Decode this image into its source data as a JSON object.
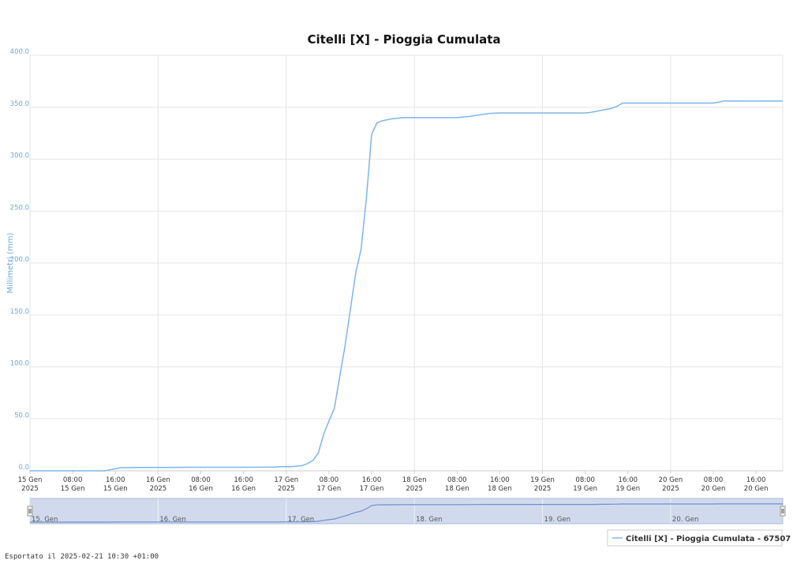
{
  "chart_data": {
    "type": "line",
    "title": "Citelli [X] - Pioggia Cumulata",
    "ylabel": "Millimetri (mm)",
    "xlabel": "",
    "ylim": [
      0,
      400
    ],
    "xlim": [
      0,
      141
    ],
    "y_ticks": [
      "0.0",
      "50.0",
      "100.0",
      "150.0",
      "200.0",
      "250.0",
      "300.0",
      "350.0",
      "400.0"
    ],
    "x_ticks": [
      {
        "x": 0,
        "line1": "15 Gen",
        "line2": "2025"
      },
      {
        "x": 8,
        "line1": "08:00",
        "line2": "15 Gen"
      },
      {
        "x": 16,
        "line1": "16:00",
        "line2": "15 Gen"
      },
      {
        "x": 24,
        "line1": "16 Gen",
        "line2": "2025"
      },
      {
        "x": 32,
        "line1": "08:00",
        "line2": "16 Gen"
      },
      {
        "x": 40,
        "line1": "16:00",
        "line2": "16 Gen"
      },
      {
        "x": 48,
        "line1": "17 Gen",
        "line2": "2025"
      },
      {
        "x": 56,
        "line1": "08:00",
        "line2": "17 Gen"
      },
      {
        "x": 64,
        "line1": "16:00",
        "line2": "17 Gen"
      },
      {
        "x": 72,
        "line1": "18 Gen",
        "line2": "2025"
      },
      {
        "x": 80,
        "line1": "08:00",
        "line2": "18 Gen"
      },
      {
        "x": 88,
        "line1": "16:00",
        "line2": "18 Gen"
      },
      {
        "x": 96,
        "line1": "19 Gen",
        "line2": "2025"
      },
      {
        "x": 104,
        "line1": "08:00",
        "line2": "19 Gen"
      },
      {
        "x": 112,
        "line1": "16:00",
        "line2": "19 Gen"
      },
      {
        "x": 120,
        "line1": "20 Gen",
        "line2": "2025"
      },
      {
        "x": 128,
        "line1": "08:00",
        "line2": "20 Gen"
      },
      {
        "x": 136,
        "line1": "16:00",
        "line2": "20 Gen"
      }
    ],
    "navigator_ticks": [
      {
        "x": 0,
        "label": "15. Gen"
      },
      {
        "x": 24,
        "label": "16. Gen"
      },
      {
        "x": 48,
        "label": "17. Gen"
      },
      {
        "x": 72,
        "label": "18. Gen"
      },
      {
        "x": 96,
        "label": "19. Gen"
      },
      {
        "x": 120,
        "label": "20. Gen"
      }
    ],
    "grid": true,
    "legend_position": "bottom-right",
    "series": [
      {
        "name": "Citelli [X] - Pioggia Cumulata - 67507",
        "color": "#7cb5ec",
        "x": [
          0,
          14,
          15,
          16,
          17,
          18,
          20,
          25,
          30,
          35,
          40,
          45,
          46,
          47,
          48,
          49,
          50,
          51,
          52,
          53,
          54,
          55,
          56,
          57,
          58,
          59,
          60,
          61,
          62,
          63,
          64,
          65,
          66,
          67,
          68,
          69,
          70,
          71,
          72,
          73,
          74,
          75,
          76,
          77,
          78,
          79,
          80,
          82,
          84,
          86,
          88,
          90,
          92,
          94,
          96,
          98,
          100,
          102,
          104,
          105,
          106,
          107,
          108,
          109,
          110,
          111,
          112,
          114,
          116,
          118,
          120,
          122,
          124,
          126,
          128,
          129,
          130,
          132,
          136,
          141
        ],
        "values": [
          0,
          0,
          1,
          2,
          3,
          3,
          3.2,
          3.3,
          3.4,
          3.4,
          3.4,
          3.5,
          3.5,
          4,
          4,
          4,
          4.5,
          5,
          7,
          10,
          17,
          35,
          48,
          60,
          90,
          120,
          155,
          190,
          213,
          262,
          324,
          335,
          337,
          338,
          339,
          339.5,
          340,
          340,
          340,
          340,
          340,
          340,
          340,
          340,
          340,
          340,
          340,
          341,
          342.5,
          344,
          344.5,
          344.5,
          344.5,
          344.5,
          344.5,
          344.5,
          344.5,
          344.5,
          344.5,
          345,
          346,
          347,
          348,
          349,
          351,
          354,
          354,
          354,
          354,
          354,
          354,
          354,
          354,
          354,
          354,
          355,
          356,
          356,
          356,
          356
        ]
      }
    ]
  },
  "footer": {
    "exported": "Esportato il 2025-02-21 10:30 +01:00"
  },
  "colors": {
    "series": "#7cb5ec",
    "grid": "#e6e6e6",
    "navigator_mask": "rgba(102,133,194,0.3)",
    "navigator_line": "#6d8fd0",
    "axis_text": "#6aa7e3"
  }
}
